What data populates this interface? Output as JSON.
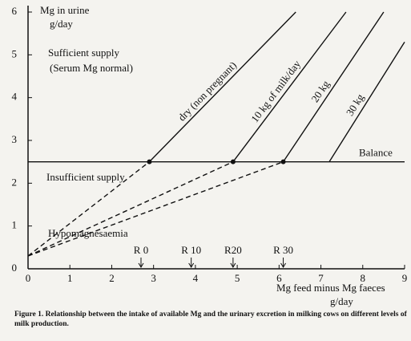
{
  "chart_data": {
    "type": "line",
    "y_label": [
      "Mg in urine",
      "g/day"
    ],
    "x_label": [
      "Mg feed minus Mg faeces",
      "g/day"
    ],
    "xlim": [
      0,
      9
    ],
    "ylim": [
      0,
      6
    ],
    "xticks": [
      0,
      1,
      2,
      3,
      4,
      5,
      6,
      7,
      8,
      9
    ],
    "yticks": [
      0,
      1,
      2,
      3,
      4,
      5,
      6
    ],
    "color": "#111111",
    "balance": {
      "label": "Balance",
      "value": 2.5
    },
    "regions": [
      "Sufficient supply",
      "(Serum Mg normal)",
      "Insufficient supply",
      "Hypomagnesaemia"
    ],
    "markers": [
      {
        "label": "R 0",
        "value": 2.7
      },
      {
        "label": "R 10",
        "value": 3.9
      },
      {
        "label": "R20",
        "value": 4.9
      },
      {
        "label": "R 30",
        "value": 6.1
      }
    ],
    "series": [
      {
        "name": "dry (non pregnant)",
        "dashed_start": true,
        "x": [
          0,
          2.9,
          6.4
        ],
        "values": [
          0.3,
          2.5,
          6.0
        ]
      },
      {
        "name": "10 kg of milk/day",
        "dashed_start": true,
        "x": [
          0,
          4.9,
          7.6
        ],
        "values": [
          0.3,
          2.5,
          6.0
        ]
      },
      {
        "name": "20 kg",
        "dashed_start": true,
        "x": [
          0,
          6.1,
          8.5
        ],
        "values": [
          0.3,
          2.5,
          6.0
        ]
      },
      {
        "name": "30 kg",
        "dashed_start": false,
        "x": [
          7.2,
          9.0
        ],
        "values": [
          2.5,
          5.3
        ]
      }
    ]
  },
  "caption": "Figure 1. Relationship between the intake of available Mg and the urinary excretion in milking cows on different levels of milk production."
}
